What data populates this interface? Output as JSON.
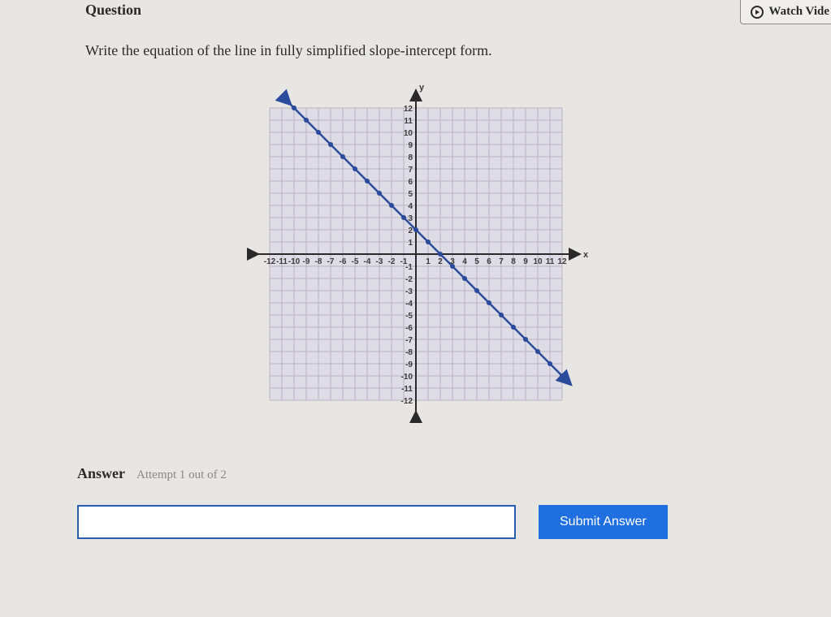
{
  "header": {
    "question_label": "Question",
    "watch_video_label": "Watch Vide"
  },
  "prompt_text": "Write the equation of the line in fully simplified slope-intercept form.",
  "chart": {
    "type": "line",
    "x_axis_label": "x",
    "y_axis_label": "y",
    "xlim": [
      -12,
      12
    ],
    "ylim": [
      -12,
      12
    ],
    "tick_step": 1,
    "x_tick_labels": [
      "-12",
      "-11",
      "-10",
      "-9",
      "-8",
      "-7",
      "-6",
      "-5",
      "-4",
      "-3",
      "-2",
      "-1",
      "",
      "1",
      "2",
      "3",
      "4",
      "5",
      "6",
      "7",
      "8",
      "9",
      "10",
      "11",
      "12"
    ],
    "y_tick_labels_pos": [
      "1",
      "2",
      "3",
      "4",
      "5",
      "6",
      "7",
      "8",
      "9",
      "10",
      "11",
      "12"
    ],
    "y_tick_labels_neg": [
      "-1",
      "-2",
      "-3",
      "-4",
      "-5",
      "-6",
      "-7",
      "-8",
      "-9",
      "-10",
      "-11",
      "-12"
    ],
    "grid_color": "#b8b5c4",
    "grid_bg": "#dedce4",
    "axis_color": "#2a2a2a",
    "line_color": "#2a4b9b",
    "line_width": 2.5,
    "point_color": "#2a4b9b",
    "point_radius": 3,
    "line_points": [
      [
        -10,
        12
      ],
      [
        -9,
        11
      ],
      [
        -8,
        10
      ],
      [
        -7,
        9
      ],
      [
        -6,
        8
      ],
      [
        -5,
        7
      ],
      [
        -4,
        6
      ],
      [
        -3,
        5
      ],
      [
        -2,
        4
      ],
      [
        -1,
        3
      ],
      [
        0,
        2
      ],
      [
        1,
        1
      ],
      [
        2,
        0
      ],
      [
        3,
        -1
      ],
      [
        4,
        -2
      ],
      [
        5,
        -3
      ],
      [
        6,
        -4
      ],
      [
        7,
        -5
      ],
      [
        8,
        -6
      ],
      [
        9,
        -7
      ],
      [
        10,
        -8
      ],
      [
        11,
        -9
      ],
      [
        12,
        -10
      ]
    ],
    "line_endpoints": [
      [
        -10.5,
        12.5
      ],
      [
        12.5,
        -10.5
      ]
    ],
    "svg_size": 440,
    "plot_size": 360
  },
  "answer": {
    "label": "Answer",
    "attempt_text": "Attempt 1 out of 2",
    "input_value": "",
    "input_placeholder": "",
    "submit_label": "Submit Answer"
  },
  "colors": {
    "page_bg": "#e8e6e3",
    "input_border": "#2a5db0",
    "submit_bg": "#1f6fe0",
    "submit_fg": "#ffffff",
    "text": "#2a2a2a",
    "muted": "#888888"
  }
}
